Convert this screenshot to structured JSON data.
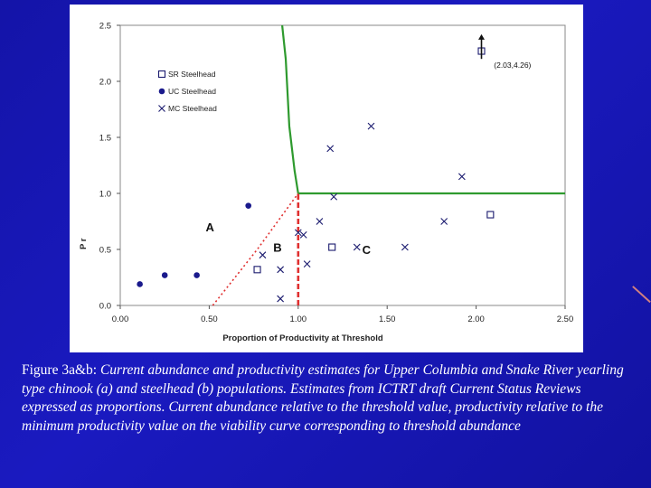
{
  "chart_data": {
    "type": "scatter",
    "xlabel": "Proportion of Productivity at Threshold",
    "ylabel": "P r",
    "xlim": [
      0,
      2.5
    ],
    "ylim": [
      0,
      2.5
    ],
    "xticks": [
      "0.00",
      "0.50",
      "1.00",
      "1.50",
      "2.00",
      "2.50"
    ],
    "yticks": [
      "0.0",
      "0.5",
      "1.0",
      "1.5",
      "2.0",
      "2.5"
    ],
    "grid": false,
    "legend_position": "top-left",
    "series": [
      {
        "name": "SR Steelhead",
        "marker": "open-square",
        "color": "#1a1a6e",
        "points": [
          [
            0.77,
            0.32
          ],
          [
            1.19,
            0.52
          ],
          [
            2.08,
            0.81
          ],
          [
            2.03,
            2.27
          ]
        ]
      },
      {
        "name": "UC Steelhead",
        "marker": "filled-circle",
        "color": "#1a1a8c",
        "points": [
          [
            0.11,
            0.19
          ],
          [
            0.25,
            0.27
          ],
          [
            0.43,
            0.27
          ],
          [
            0.72,
            0.89
          ]
        ]
      },
      {
        "name": "MC Steelhead",
        "marker": "x",
        "color": "#1a1a6e",
        "points": [
          [
            0.8,
            0.45
          ],
          [
            0.9,
            0.32
          ],
          [
            0.9,
            0.06
          ],
          [
            1.0,
            0.65
          ],
          [
            1.03,
            0.63
          ],
          [
            1.05,
            0.37
          ],
          [
            1.12,
            0.75
          ],
          [
            1.18,
            1.4
          ],
          [
            1.2,
            0.97
          ],
          [
            1.33,
            0.52
          ],
          [
            1.41,
            1.6
          ],
          [
            1.6,
            0.52
          ],
          [
            1.82,
            0.75
          ],
          [
            1.92,
            1.15
          ]
        ]
      }
    ],
    "curve_green": [
      [
        0.91,
        2.5
      ],
      [
        0.93,
        2.2
      ],
      [
        0.95,
        1.6
      ],
      [
        0.98,
        1.2
      ],
      [
        1.0,
        1.0
      ],
      [
        2.5,
        1.0
      ]
    ],
    "curve_red_dotted": [
      [
        0.52,
        0.0
      ],
      [
        0.77,
        0.5
      ],
      [
        1.0,
        1.0
      ]
    ],
    "curve_red_vertical": [
      [
        1.0,
        0.0
      ],
      [
        1.0,
        1.0
      ]
    ],
    "annotations": [
      {
        "text": "A",
        "x": 0.48,
        "y": 0.66
      },
      {
        "text": "B",
        "x": 0.86,
        "y": 0.48
      },
      {
        "text": "C",
        "x": 1.36,
        "y": 0.46
      },
      {
        "text": "(2.03,4.26)",
        "x": 2.1,
        "y": 2.12
      }
    ],
    "arrow": {
      "x": 2.03,
      "y_from": 2.2,
      "y_to": 2.42
    }
  },
  "caption": {
    "lead": "Figure 3a&b:",
    "body": "Current abundance and productivity estimates for Upper Columbia and Snake River yearling type chinook (a) and steelhead (b) populations. Estimates from ICTRT draft Current Status Reviews expressed as proportions. Current abundance relative to the threshold value, productivity relative to the minimum productivity value on the viability curve corresponding to threshold abundance"
  }
}
